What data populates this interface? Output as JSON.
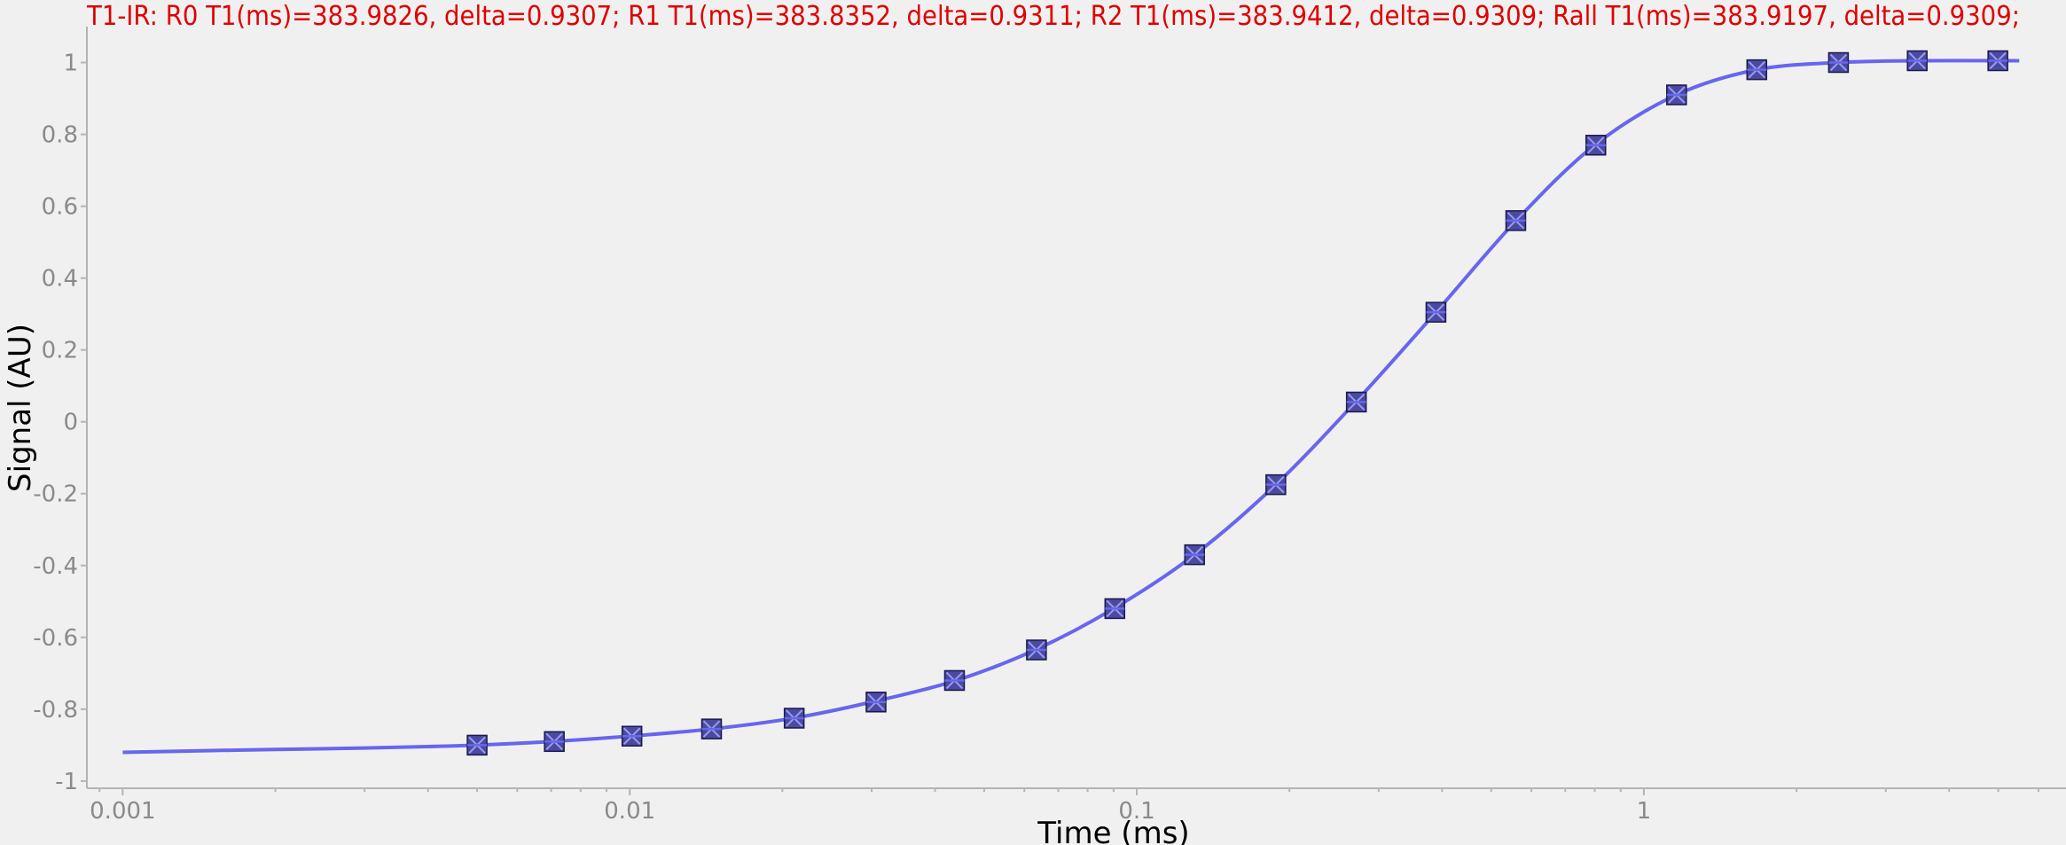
{
  "chart_data": {
    "type": "scatter",
    "title": "T1-IR: R0 T1(ms)=383.9826, delta=0.9307; R1 T1(ms)=383.8352, delta=0.9311; R2 T1(ms)=383.9412, delta=0.9309; Rall T1(ms)=383.9197, delta=0.9309;",
    "xlabel": "Time (ms)",
    "ylabel": "Signal (AU)",
    "x_scale": "log",
    "xlim": [
      0.00085,
      6.8
    ],
    "ylim": [
      -1.02,
      1.1
    ],
    "x_ticks": [
      0.001,
      0.01,
      0.1,
      1
    ],
    "x_tick_labels": [
      "0.001",
      "0.01",
      "0.1",
      "1"
    ],
    "y_ticks": [
      -1,
      -0.8,
      -0.6,
      -0.4,
      -0.2,
      0,
      0.2,
      0.4,
      0.6,
      0.8,
      1
    ],
    "y_tick_labels": [
      "-1",
      "-0.8",
      "-0.6",
      "-0.4",
      "-0.2",
      "0",
      "0.2",
      "0.4",
      "0.6",
      "0.8",
      "1"
    ],
    "grid": false,
    "legend": "none",
    "series": [
      {
        "kind": "points",
        "x": [
          0.005,
          0.0071,
          0.0101,
          0.0145,
          0.0211,
          0.0306,
          0.0437,
          0.0634,
          0.0905,
          0.13,
          0.188,
          0.271,
          0.389,
          0.559,
          0.804,
          1.16,
          1.67,
          2.42,
          3.46,
          4.99
        ],
        "y": [
          -0.9,
          -0.89,
          -0.875,
          -0.855,
          -0.825,
          -0.78,
          -0.72,
          -0.635,
          -0.52,
          -0.37,
          -0.175,
          0.055,
          0.305,
          0.56,
          0.77,
          0.91,
          0.98,
          1.0,
          1.005,
          1.005
        ]
      },
      {
        "kind": "fit",
        "x": [
          0.001,
          0.0015,
          0.002,
          0.003,
          0.004,
          0.005,
          0.007,
          0.01,
          0.0145,
          0.021,
          0.03,
          0.044,
          0.063,
          0.09,
          0.13,
          0.188,
          0.27,
          0.389,
          0.56,
          0.8,
          1.16,
          1.67,
          2.42,
          3.46,
          5.5
        ],
        "y": [
          -0.92,
          -0.915,
          -0.912,
          -0.908,
          -0.904,
          -0.9,
          -0.89,
          -0.875,
          -0.855,
          -0.825,
          -0.78,
          -0.72,
          -0.635,
          -0.52,
          -0.37,
          -0.175,
          0.055,
          0.305,
          0.56,
          0.77,
          0.91,
          0.98,
          1.0,
          1.005,
          1.005
        ]
      }
    ],
    "colors": {
      "line": "#6666ee",
      "marker_fill": "#4a4aa0",
      "marker_edge": "#1a1a50",
      "marker_cross": "#9a9af0",
      "title": "#e00000",
      "tick_label": "#8a8a8a",
      "axis": "#b4b4b4"
    }
  }
}
